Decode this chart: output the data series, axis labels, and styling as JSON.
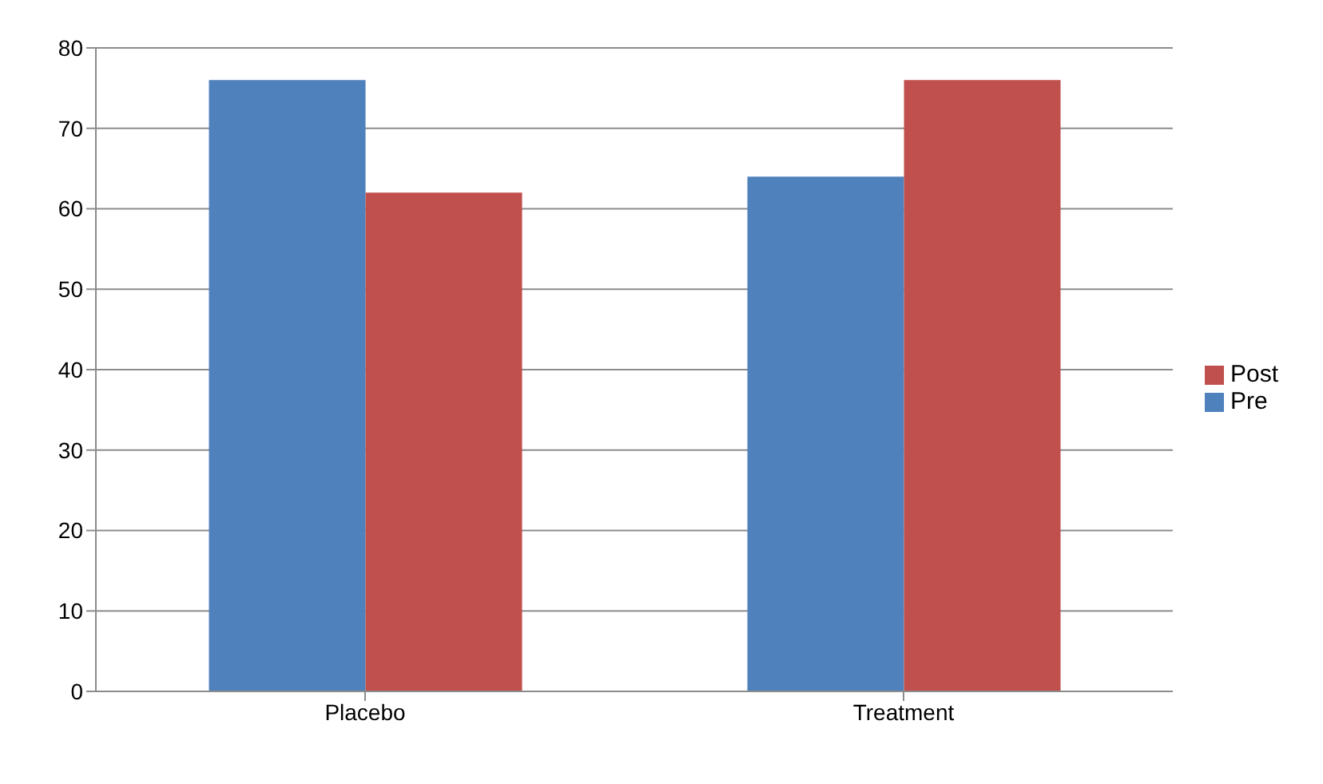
{
  "chart_data": {
    "type": "bar",
    "categories": [
      "Placebo",
      "Treatment"
    ],
    "series": [
      {
        "name": "Pre",
        "color": "#4f81bd",
        "values": [
          76,
          64
        ]
      },
      {
        "name": "Post",
        "color": "#c0504d",
        "values": [
          62,
          76
        ]
      }
    ],
    "ylim": [
      0,
      80
    ],
    "yticks": [
      0,
      10,
      20,
      30,
      40,
      50,
      60,
      70,
      80
    ],
    "grid": "y",
    "legend": "right"
  }
}
